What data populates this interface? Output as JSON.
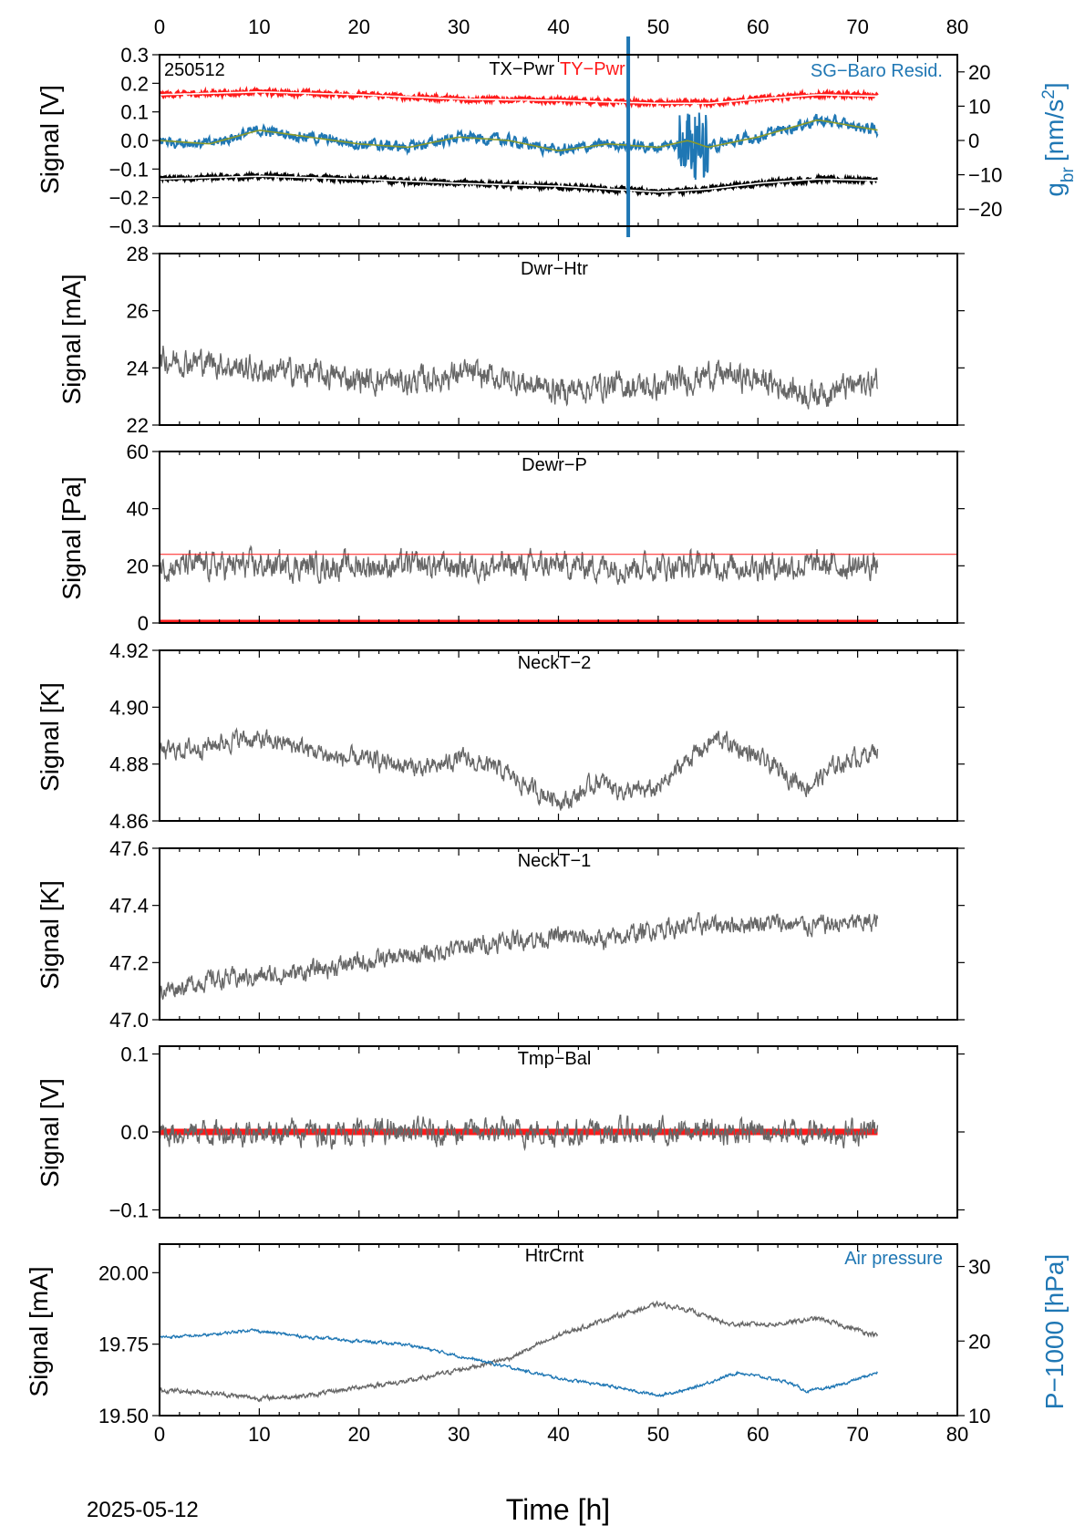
{
  "date_label": "2025-05-12",
  "x_axis": {
    "label": "Time [h]",
    "range": [
      0,
      80
    ],
    "ticks": [
      0,
      10,
      20,
      30,
      40,
      50,
      60,
      70,
      80
    ]
  },
  "colors": {
    "black": "#000000",
    "red": "#ff1a1a",
    "blue": "#1f77b4",
    "gray": "#666666",
    "olive": "#8a9a2a",
    "white": "#ffffff"
  },
  "chart_data": [
    {
      "type": "line",
      "id": "tilt",
      "ylabel": "Signal [V]",
      "ylim": [
        -0.3,
        0.3
      ],
      "yticks": [
        "0.3",
        "0.2",
        "0.1",
        "0.0",
        "−0.1",
        "−0.2",
        "−0.3"
      ],
      "y2label": "g",
      "y2label_sub": "br",
      "y2label_unit": "[nm/s",
      "y2label_sup": "2",
      "y2label_close": "]",
      "y2lim": [
        -25,
        25
      ],
      "y2ticks": [
        "20",
        "10",
        "0",
        "−10",
        "−20"
      ],
      "corner_label": "250512",
      "title_black": "TX−Pwr",
      "title_red": "TY−Pwr",
      "right_label": "SG−Baro Resid.",
      "series": [
        {
          "name": "TX−Pwr",
          "color": "black",
          "x": [
            0,
            10,
            20,
            30,
            40,
            50,
            55,
            60,
            66,
            72
          ],
          "values": [
            -0.135,
            -0.125,
            -0.135,
            -0.15,
            -0.16,
            -0.18,
            -0.17,
            -0.15,
            -0.135,
            -0.14
          ]
        },
        {
          "name": "TY−Pwr",
          "color": "red",
          "x": [
            0,
            10,
            20,
            30,
            40,
            50,
            55,
            60,
            66,
            72
          ],
          "values": [
            0.16,
            0.17,
            0.16,
            0.145,
            0.14,
            0.13,
            0.13,
            0.145,
            0.16,
            0.155
          ]
        },
        {
          "name": "SG−Baro Resid.",
          "color": "blue",
          "axis": "right",
          "x": [
            0,
            5,
            10,
            15,
            20,
            25,
            30,
            35,
            40,
            45,
            50,
            53,
            55,
            60,
            66,
            72
          ],
          "values": [
            0,
            -1,
            3,
            1,
            -1,
            -2,
            1,
            0,
            -3,
            -1,
            -2,
            0,
            -2,
            1,
            6,
            3
          ]
        }
      ],
      "vline_x": 47
    },
    {
      "type": "line",
      "id": "dwr-htr",
      "title": "Dwr−Htr",
      "ylabel": "Signal [mA]",
      "ylim": [
        22,
        28
      ],
      "yticks": [
        "28",
        "26",
        "24",
        "22"
      ],
      "series": [
        {
          "color": "gray",
          "x": [
            0,
            5,
            10,
            15,
            20,
            25,
            30,
            35,
            40,
            45,
            50,
            55,
            60,
            65,
            72
          ],
          "values": [
            24.3,
            24.2,
            23.9,
            23.8,
            23.6,
            23.5,
            23.8,
            23.6,
            23.2,
            23.4,
            23.3,
            23.8,
            23.6,
            23.1,
            23.5
          ]
        }
      ]
    },
    {
      "type": "line",
      "id": "dewr-p",
      "title": "Dewr−P",
      "ylabel": "Signal [Pa]",
      "ylim": [
        0,
        60
      ],
      "yticks": [
        "60",
        "40",
        "20",
        "0"
      ],
      "hline_red": 24,
      "zero_red_until": 72,
      "series": [
        {
          "color": "gray",
          "x": [
            0,
            72
          ],
          "values": [
            20,
            20
          ]
        }
      ]
    },
    {
      "type": "line",
      "id": "neckt-2",
      "title": "NeckT−2",
      "ylabel": "Signal [K]",
      "ylim": [
        4.86,
        4.92
      ],
      "yticks": [
        "4.92",
        "4.90",
        "4.88",
        "4.86"
      ],
      "series": [
        {
          "color": "gray",
          "x": [
            0,
            4,
            8,
            13,
            18,
            22,
            27,
            30,
            34,
            38,
            41,
            44,
            47,
            50,
            53,
            56,
            59,
            62,
            65,
            68,
            72
          ],
          "values": [
            4.884,
            4.886,
            4.889,
            4.887,
            4.882,
            4.881,
            4.878,
            4.882,
            4.878,
            4.87,
            4.867,
            4.874,
            4.87,
            4.871,
            4.882,
            4.889,
            4.884,
            4.878,
            4.872,
            4.88,
            4.885
          ]
        }
      ]
    },
    {
      "type": "line",
      "id": "neckt-1",
      "title": "NeckT−1",
      "ylabel": "Signal [K]",
      "ylim": [
        47.0,
        47.6
      ],
      "yticks": [
        "47.6",
        "47.4",
        "47.2",
        "47.0"
      ],
      "series": [
        {
          "color": "gray",
          "x": [
            0,
            5,
            10,
            15,
            20,
            25,
            30,
            35,
            40,
            45,
            50,
            55,
            60,
            65,
            72
          ],
          "values": [
            47.1,
            47.14,
            47.15,
            47.17,
            47.2,
            47.22,
            47.25,
            47.28,
            47.29,
            47.28,
            47.32,
            47.33,
            47.34,
            47.33,
            47.34
          ]
        }
      ]
    },
    {
      "type": "line",
      "id": "tmp-bal",
      "title": "Tmp−Bal",
      "ylabel": "Signal [V]",
      "ylim": [
        -0.11,
        0.11
      ],
      "yticks": [
        "0.1",
        "0.0",
        "−0.1"
      ],
      "zero_red_until": 72,
      "series": [
        {
          "color": "gray",
          "x": [
            0,
            72
          ],
          "values": [
            0,
            0
          ]
        }
      ]
    },
    {
      "type": "line",
      "id": "htrcrnt",
      "title": "HtrCrnt",
      "ylabel": "Signal [mA]",
      "ylim": [
        19.5,
        20.1
      ],
      "yticks": [
        "20.00",
        "19.75",
        "19.50"
      ],
      "y2label": "P−1000 [hPa]",
      "y2lim": [
        10,
        33
      ],
      "y2ticks": [
        "30",
        "20",
        "10"
      ],
      "right_label": "Air pressure",
      "series": [
        {
          "color": "gray",
          "x": [
            0,
            5,
            10,
            15,
            20,
            25,
            30,
            35,
            40,
            45,
            50,
            53,
            57,
            62,
            66,
            72
          ],
          "values": [
            19.59,
            19.58,
            19.56,
            19.57,
            19.6,
            19.62,
            19.66,
            19.7,
            19.78,
            19.84,
            19.89,
            19.87,
            19.82,
            19.82,
            19.84,
            19.78
          ]
        },
        {
          "name": "Air pressure",
          "color": "blue",
          "axis": "right",
          "x": [
            0,
            5,
            9,
            15,
            20,
            25,
            30,
            35,
            40,
            45,
            50,
            53,
            58,
            63,
            65,
            68,
            72
          ],
          "values": [
            20.5,
            20.8,
            21.5,
            20.5,
            20,
            19.5,
            18,
            16.5,
            15,
            14,
            12.7,
            13.5,
            15.8,
            14.5,
            13.2,
            14,
            15.8
          ]
        }
      ]
    }
  ]
}
